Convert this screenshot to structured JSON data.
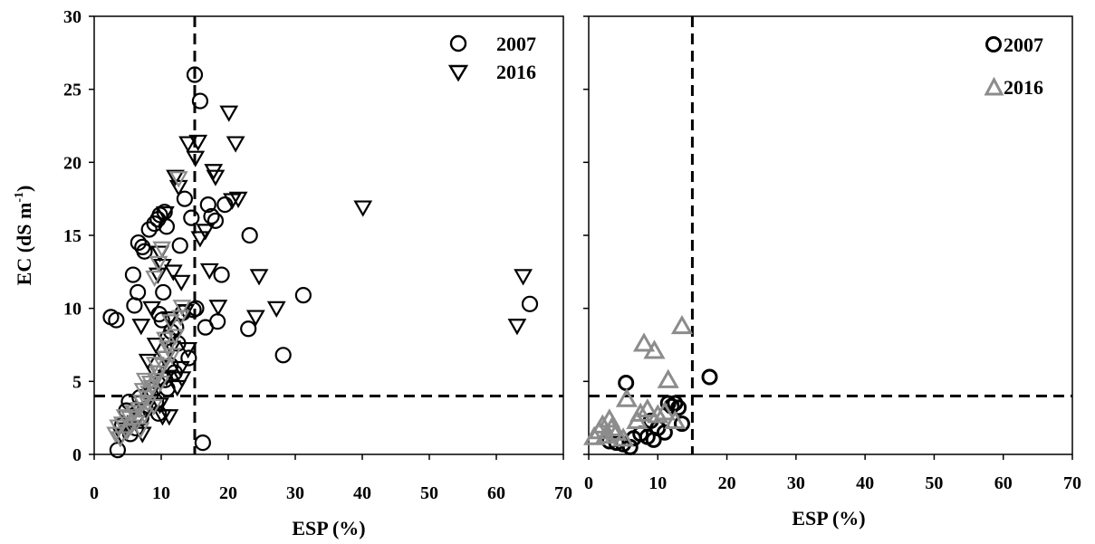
{
  "chart_data": [
    {
      "type": "scatter",
      "title": "",
      "xlabel": "ESP (%)",
      "ylabel": "EC (dS m-1)",
      "ylabel_parts": {
        "main": "EC (dS m",
        "sup": "-1",
        "close": ")"
      },
      "xlim": [
        0,
        70
      ],
      "ylim": [
        0,
        30
      ],
      "x_ticks": [
        "0",
        "10",
        "20",
        "30",
        "40",
        "50",
        "60",
        "70"
      ],
      "y_ticks": [
        "0",
        "5",
        "10",
        "15",
        "20",
        "25",
        "30"
      ],
      "reference_lines": {
        "x": 15,
        "y": 4
      },
      "grid": false,
      "legend_position": "top-right",
      "series": [
        {
          "name": "2007",
          "marker": "circle",
          "color": "#000000",
          "points": [
            [
              2.5,
              9.4
            ],
            [
              3.3,
              9.2
            ],
            [
              3.5,
              0.3
            ],
            [
              4.2,
              2.0
            ],
            [
              4.8,
              3.0
            ],
            [
              5.2,
              3.6
            ],
            [
              5.8,
              12.3
            ],
            [
              6.0,
              10.2
            ],
            [
              6.5,
              11.1
            ],
            [
              6.6,
              14.5
            ],
            [
              7.2,
              14.2
            ],
            [
              7.5,
              13.9
            ],
            [
              8.2,
              15.4
            ],
            [
              9.0,
              15.8
            ],
            [
              9.5,
              16.1
            ],
            [
              9.8,
              16.4
            ],
            [
              10.5,
              16.6
            ],
            [
              10.8,
              15.6
            ],
            [
              10.3,
              11.1
            ],
            [
              10.1,
              9.2
            ],
            [
              9.7,
              9.6
            ],
            [
              11.0,
              8.0
            ],
            [
              11.5,
              8.4
            ],
            [
              12.2,
              8.7
            ],
            [
              12.8,
              14.3
            ],
            [
              13.5,
              17.5
            ],
            [
              14.1,
              6.6
            ],
            [
              14.5,
              16.2
            ],
            [
              15.0,
              26.0
            ],
            [
              15.2,
              10.0
            ],
            [
              15.8,
              24.2
            ],
            [
              16.2,
              0.8
            ],
            [
              16.6,
              8.7
            ],
            [
              17.0,
              17.1
            ],
            [
              17.5,
              16.3
            ],
            [
              18.1,
              16.0
            ],
            [
              18.4,
              9.1
            ],
            [
              19.0,
              12.3
            ],
            [
              19.5,
              17.1
            ],
            [
              23.0,
              8.6
            ],
            [
              23.2,
              15.0
            ],
            [
              28.2,
              6.8
            ],
            [
              31.2,
              10.9
            ],
            [
              65.0,
              10.3
            ],
            [
              6.2,
              1.8
            ],
            [
              7.0,
              2.5
            ],
            [
              7.6,
              3.1
            ],
            [
              8.4,
              4.1
            ],
            [
              9.2,
              3.6
            ],
            [
              10.6,
              5.1
            ],
            [
              11.4,
              6.1
            ],
            [
              12.0,
              5.6
            ],
            [
              5.4,
              1.4
            ],
            [
              6.8,
              3.9
            ],
            [
              9.6,
              2.8
            ],
            [
              10.9,
              4.5
            ],
            [
              12.5,
              7.6
            ],
            [
              13.2,
              9.7
            ],
            [
              14.8,
              9.9
            ],
            [
              8.8,
              4.4
            ]
          ]
        },
        {
          "name": "2016",
          "marker": "triangle-down",
          "color": "#000000",
          "points": [
            [
              7.0,
              8.8
            ],
            [
              8.0,
              6.4
            ],
            [
              8.6,
              10.0
            ],
            [
              9.2,
              7.5
            ],
            [
              9.5,
              12.3
            ],
            [
              9.8,
              13.8
            ],
            [
              10.2,
              12.9
            ],
            [
              10.6,
              16.5
            ],
            [
              11.3,
              9.3
            ],
            [
              11.8,
              12.5
            ],
            [
              12.1,
              19.0
            ],
            [
              12.6,
              18.3
            ],
            [
              13.0,
              11.8
            ],
            [
              13.6,
              9.8
            ],
            [
              14.0,
              21.3
            ],
            [
              15.1,
              20.3
            ],
            [
              15.5,
              21.4
            ],
            [
              15.8,
              14.8
            ],
            [
              16.6,
              15.3
            ],
            [
              17.2,
              12.6
            ],
            [
              17.8,
              19.4
            ],
            [
              18.1,
              19.0
            ],
            [
              18.5,
              10.1
            ],
            [
              20.1,
              23.4
            ],
            [
              20.6,
              17.4
            ],
            [
              21.1,
              21.3
            ],
            [
              21.5,
              17.5
            ],
            [
              24.1,
              9.4
            ],
            [
              24.6,
              12.2
            ],
            [
              27.2,
              10.0
            ],
            [
              40.1,
              16.9
            ],
            [
              63.1,
              8.8
            ],
            [
              64.0,
              12.2
            ],
            [
              10.2,
              2.6
            ],
            [
              11.2,
              2.6
            ],
            [
              12.4,
              4.6
            ],
            [
              13.1,
              5.2
            ],
            [
              14.0,
              7.2
            ],
            [
              10.5,
              6.6
            ],
            [
              9.0,
              5.6
            ],
            [
              8.4,
              4.2
            ],
            [
              7.7,
              3.1
            ],
            [
              6.2,
              2.2
            ],
            [
              5.0,
              1.7
            ],
            [
              4.1,
              1.3
            ],
            [
              11.6,
              7.3
            ],
            [
              12.9,
              5.9
            ],
            [
              9.8,
              3.4
            ],
            [
              10.8,
              5.3
            ],
            [
              7.2,
              1.4
            ]
          ]
        },
        {
          "name": "2016 (gray)",
          "marker": "triangle-down",
          "color": "#8c8c8c",
          "points": [
            [
              3.2,
              1.4
            ],
            [
              3.6,
              1.9
            ],
            [
              4.2,
              2.1
            ],
            [
              4.8,
              1.6
            ],
            [
              5.3,
              2.5
            ],
            [
              5.8,
              2.9
            ],
            [
              6.3,
              2.2
            ],
            [
              6.7,
              3.1
            ],
            [
              7.1,
              3.6
            ],
            [
              7.5,
              2.7
            ],
            [
              7.9,
              3.9
            ],
            [
              8.2,
              4.2
            ],
            [
              8.6,
              4.6
            ],
            [
              8.9,
              3.3
            ],
            [
              9.2,
              5.1
            ],
            [
              9.5,
              5.6
            ],
            [
              9.9,
              4.9
            ],
            [
              10.3,
              6.1
            ],
            [
              10.7,
              6.6
            ],
            [
              11.0,
              7.3
            ],
            [
              11.6,
              6.8
            ],
            [
              12.1,
              8.1
            ],
            [
              12.6,
              18.9
            ],
            [
              9.6,
              13.1
            ],
            [
              10.1,
              14.1
            ],
            [
              9.0,
              12.1
            ],
            [
              8.4,
              4.9
            ],
            [
              7.6,
              5.1
            ],
            [
              6.9,
              1.7
            ],
            [
              5.5,
              1.9
            ],
            [
              4.6,
              2.6
            ],
            [
              3.9,
              1.1
            ],
            [
              9.1,
              6.2
            ],
            [
              10.6,
              7.9
            ],
            [
              11.4,
              9.1
            ],
            [
              13.1,
              10.1
            ],
            [
              12.9,
              9.4
            ],
            [
              8.0,
              3.5
            ],
            [
              6.1,
              2.9
            ],
            [
              7.3,
              4.4
            ]
          ]
        }
      ],
      "legend": [
        {
          "label": "2007",
          "marker": "circle",
          "color": "#000000"
        },
        {
          "label": "2016",
          "marker": "triangle-down",
          "color": "#000000"
        }
      ]
    },
    {
      "type": "scatter",
      "title": "",
      "xlabel": "ESP (%)",
      "ylabel": "",
      "xlim": [
        0,
        70
      ],
      "ylim": [
        0,
        30
      ],
      "x_ticks": [
        "0",
        "10",
        "20",
        "30",
        "40",
        "50",
        "60",
        "70"
      ],
      "y_ticks": [],
      "reference_lines": {
        "x": 15,
        "y": 4
      },
      "grid": false,
      "legend_position": "top-right",
      "series": [
        {
          "name": "2007",
          "marker": "circle",
          "color": "#000000",
          "points": [
            [
              3.0,
              0.9
            ],
            [
              4.0,
              0.8
            ],
            [
              5.0,
              0.7
            ],
            [
              5.4,
              4.9
            ],
            [
              6.0,
              0.5
            ],
            [
              6.5,
              1.1
            ],
            [
              7.5,
              1.4
            ],
            [
              8.5,
              1.2
            ],
            [
              9.4,
              1.0
            ],
            [
              10.0,
              1.8
            ],
            [
              11.0,
              1.5
            ],
            [
              11.5,
              3.5
            ],
            [
              12.0,
              3.3
            ],
            [
              12.5,
              3.5
            ],
            [
              13.0,
              3.2
            ],
            [
              13.5,
              2.1
            ],
            [
              17.5,
              5.3
            ],
            [
              9.0,
              2.3
            ]
          ]
        },
        {
          "name": "2016",
          "marker": "triangle-up",
          "color": "#8c8c8c",
          "points": [
            [
              0.8,
              1.2
            ],
            [
              1.5,
              1.6
            ],
            [
              2.0,
              2.0
            ],
            [
              2.5,
              1.3
            ],
            [
              3.0,
              2.4
            ],
            [
              3.3,
              1.8
            ],
            [
              4.0,
              1.5
            ],
            [
              5.0,
              1.1
            ],
            [
              5.5,
              3.8
            ],
            [
              7.0,
              2.3
            ],
            [
              7.5,
              2.8
            ],
            [
              8.0,
              7.6
            ],
            [
              8.5,
              3.1
            ],
            [
              9.5,
              7.1
            ],
            [
              10.0,
              2.7
            ],
            [
              11.0,
              2.9
            ],
            [
              11.5,
              5.1
            ],
            [
              12.5,
              2.3
            ],
            [
              13.5,
              8.8
            ]
          ]
        }
      ],
      "legend": [
        {
          "label": "2007",
          "marker": "circle",
          "color": "#000000"
        },
        {
          "label": "2016",
          "marker": "triangle-up",
          "color": "#8c8c8c"
        }
      ]
    }
  ]
}
